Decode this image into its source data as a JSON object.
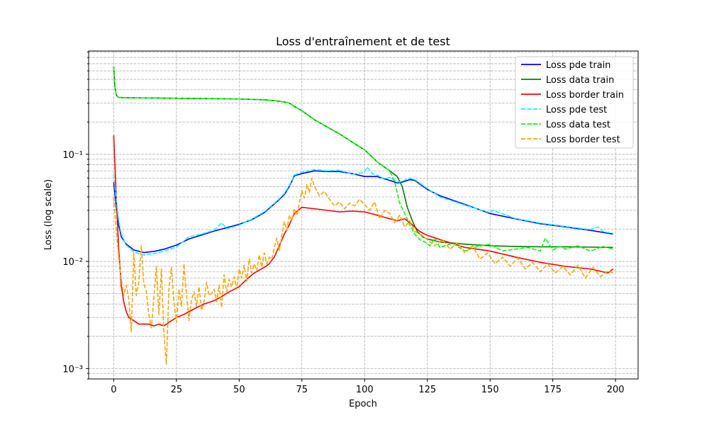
{
  "chart_data": {
    "type": "line",
    "title": "Loss d'entraînement et de test",
    "xlabel": "Epoch",
    "ylabel": "Loss (log scale)",
    "yscale": "log",
    "xlim": [
      -10,
      209
    ],
    "ylim": [
      0.0008,
      0.92
    ],
    "grid": "on (both major and minor, dashed)",
    "legend_position": "top-right",
    "x_ticks": [
      0,
      25,
      50,
      75,
      100,
      125,
      150,
      175,
      200
    ],
    "x_tick_labels": [
      "0",
      "25",
      "50",
      "75",
      "100",
      "125",
      "150",
      "175",
      "200"
    ],
    "y_tick_values": [
      0.001,
      0.01,
      0.1
    ],
    "y_tick_labels": [
      "10⁻³",
      "10⁻²",
      "10⁻¹"
    ],
    "series": [
      {
        "name": "Loss pde train",
        "color": "#0000ff",
        "dash": "solid",
        "x": [
          0,
          1,
          2,
          3,
          5,
          8,
          12,
          16,
          20,
          25,
          30,
          40,
          50,
          55,
          60,
          65,
          68,
          70,
          72,
          75,
          80,
          85,
          90,
          95,
          100,
          105,
          110,
          113,
          115,
          118,
          120,
          125,
          130,
          140,
          150,
          160,
          170,
          180,
          190,
          199
        ],
        "y": [
          0.055,
          0.032,
          0.022,
          0.017,
          0.0145,
          0.0128,
          0.0121,
          0.0124,
          0.013,
          0.0142,
          0.0162,
          0.0192,
          0.0222,
          0.0245,
          0.0285,
          0.036,
          0.042,
          0.05,
          0.063,
          0.066,
          0.07,
          0.069,
          0.069,
          0.066,
          0.062,
          0.062,
          0.057,
          0.054,
          0.055,
          0.058,
          0.057,
          0.047,
          0.041,
          0.034,
          0.028,
          0.025,
          0.0225,
          0.021,
          0.0195,
          0.018
        ]
      },
      {
        "name": "Loss data train",
        "color": "#008000",
        "dash": "solid",
        "x": [
          0,
          0.5,
          1,
          1.5,
          2,
          3,
          5,
          10,
          20,
          30,
          40,
          50,
          55,
          60,
          65,
          68,
          70,
          72,
          75,
          80,
          85,
          90,
          95,
          100,
          105,
          110,
          113,
          115,
          117,
          119,
          121,
          123,
          125,
          130,
          140,
          150,
          160,
          170,
          180,
          190,
          199
        ],
        "y": [
          0.66,
          0.42,
          0.36,
          0.345,
          0.34,
          0.338,
          0.337,
          0.336,
          0.334,
          0.332,
          0.33,
          0.328,
          0.325,
          0.322,
          0.315,
          0.308,
          0.3,
          0.28,
          0.255,
          0.21,
          0.18,
          0.155,
          0.13,
          0.11,
          0.085,
          0.07,
          0.062,
          0.05,
          0.032,
          0.024,
          0.019,
          0.017,
          0.0162,
          0.0152,
          0.0145,
          0.014,
          0.0138,
          0.0137,
          0.0137,
          0.0136,
          0.0135
        ]
      },
      {
        "name": "Loss border train",
        "color": "#ff0000",
        "dash": "solid",
        "x": [
          0,
          1,
          2,
          3,
          4,
          5,
          6,
          7,
          8,
          10,
          12,
          14,
          16,
          18,
          20,
          22,
          25,
          28,
          30,
          33,
          36,
          40,
          43,
          46,
          50,
          53,
          56,
          60,
          62,
          64,
          66,
          68,
          70,
          72,
          75,
          80,
          85,
          90,
          95,
          100,
          105,
          110,
          113,
          116,
          119,
          122,
          125,
          130,
          140,
          150,
          160,
          170,
          180,
          190,
          197,
          199
        ],
        "y": [
          0.15,
          0.04,
          0.013,
          0.006,
          0.0042,
          0.0034,
          0.003,
          0.0029,
          0.0028,
          0.0026,
          0.0026,
          0.0026,
          0.0025,
          0.0026,
          0.0025,
          0.0027,
          0.003,
          0.0032,
          0.0034,
          0.0037,
          0.004,
          0.0043,
          0.0047,
          0.0052,
          0.0058,
          0.0068,
          0.0078,
          0.0088,
          0.0095,
          0.011,
          0.014,
          0.018,
          0.022,
          0.028,
          0.032,
          0.031,
          0.03,
          0.029,
          0.0295,
          0.029,
          0.027,
          0.025,
          0.024,
          0.025,
          0.022,
          0.019,
          0.0175,
          0.016,
          0.0135,
          0.0125,
          0.011,
          0.0098,
          0.009,
          0.0085,
          0.0078,
          0.0085
        ]
      },
      {
        "name": "Loss pde test",
        "color": "#00ffff",
        "dash": "dashed",
        "x": [
          0,
          1,
          2,
          3,
          5,
          8,
          12,
          16,
          20,
          25,
          30,
          35,
          40,
          43,
          45,
          50,
          55,
          60,
          65,
          68,
          70,
          72,
          75,
          80,
          85,
          90,
          95,
          100,
          101,
          103,
          105,
          108,
          110,
          113,
          115,
          118,
          120,
          125,
          130,
          140,
          150,
          151,
          160,
          170,
          180,
          190,
          193,
          195,
          199
        ],
        "y": [
          0.065,
          0.038,
          0.024,
          0.018,
          0.0142,
          0.0122,
          0.0115,
          0.0118,
          0.0125,
          0.0136,
          0.017,
          0.018,
          0.0195,
          0.023,
          0.0202,
          0.0218,
          0.0248,
          0.029,
          0.0365,
          0.043,
          0.051,
          0.064,
          0.068,
          0.072,
          0.07,
          0.071,
          0.065,
          0.068,
          0.076,
          0.066,
          0.064,
          0.058,
          0.061,
          0.055,
          0.056,
          0.06,
          0.058,
          0.048,
          0.04,
          0.0335,
          0.0285,
          0.03,
          0.0252,
          0.0228,
          0.0212,
          0.0198,
          0.021,
          0.019,
          0.0183
        ]
      },
      {
        "name": "Loss data test",
        "color": "#00ff00",
        "dash": "dashed",
        "x": [
          0,
          0.5,
          1,
          1.5,
          2,
          3,
          5,
          10,
          20,
          30,
          40,
          50,
          55,
          60,
          65,
          68,
          70,
          72,
          75,
          80,
          85,
          90,
          95,
          100,
          105,
          110,
          112,
          114,
          116,
          118,
          120,
          122,
          124,
          126,
          128,
          130,
          135,
          140,
          145,
          150,
          155,
          160,
          165,
          170,
          172,
          175,
          178,
          180,
          185,
          190,
          195,
          199
        ],
        "y": [
          0.66,
          0.42,
          0.36,
          0.345,
          0.34,
          0.338,
          0.337,
          0.336,
          0.334,
          0.332,
          0.33,
          0.328,
          0.325,
          0.322,
          0.315,
          0.308,
          0.3,
          0.28,
          0.255,
          0.21,
          0.18,
          0.155,
          0.13,
          0.11,
          0.085,
          0.07,
          0.055,
          0.035,
          0.028,
          0.022,
          0.018,
          0.016,
          0.0152,
          0.014,
          0.0165,
          0.0135,
          0.0148,
          0.0125,
          0.0138,
          0.0145,
          0.0125,
          0.013,
          0.0135,
          0.0125,
          0.0165,
          0.0128,
          0.0138,
          0.013,
          0.014,
          0.0125,
          0.0138,
          0.013
        ]
      },
      {
        "name": "Loss border test",
        "color": "#ffa500",
        "dash": "dashed",
        "x": [
          0,
          1,
          2,
          3,
          4,
          5,
          6,
          7,
          8,
          9,
          10,
          11,
          12,
          13,
          14,
          15,
          16,
          17,
          18,
          19,
          20,
          21,
          22,
          23,
          24,
          25,
          26,
          27,
          28,
          29,
          30,
          31,
          32,
          33,
          34,
          35,
          36,
          37,
          38,
          39,
          40,
          41,
          42,
          43,
          44,
          45,
          46,
          47,
          48,
          49,
          50,
          51,
          52,
          53,
          54,
          55,
          56,
          57,
          58,
          59,
          60,
          61,
          62,
          63,
          64,
          65,
          66,
          67,
          68,
          69,
          70,
          71,
          72,
          73,
          74,
          75,
          76,
          77,
          78,
          79,
          80,
          82,
          84,
          86,
          88,
          90,
          92,
          94,
          96,
          98,
          100,
          102,
          104,
          106,
          108,
          110,
          112,
          114,
          116,
          118,
          120,
          122,
          125,
          128,
          131,
          134,
          137,
          140,
          143,
          146,
          149,
          152,
          155,
          158,
          161,
          164,
          167,
          170,
          173,
          176,
          179,
          182,
          185,
          188,
          191,
          194,
          197,
          199
        ],
        "y": [
          0.04,
          0.02,
          0.011,
          0.0068,
          0.0048,
          0.006,
          0.0045,
          0.0022,
          0.012,
          0.0048,
          0.0065,
          0.014,
          0.0062,
          0.0052,
          0.0032,
          0.0024,
          0.0045,
          0.009,
          0.0032,
          0.0085,
          0.0021,
          0.0011,
          0.0055,
          0.0088,
          0.0042,
          0.0027,
          0.0055,
          0.0038,
          0.0095,
          0.005,
          0.0028,
          0.0044,
          0.0052,
          0.0038,
          0.0058,
          0.0035,
          0.0042,
          0.0064,
          0.0048,
          0.005,
          0.0055,
          0.0042,
          0.006,
          0.0037,
          0.0075,
          0.0052,
          0.0068,
          0.0058,
          0.0072,
          0.0055,
          0.0085,
          0.007,
          0.0092,
          0.0065,
          0.0105,
          0.0078,
          0.0095,
          0.0082,
          0.0115,
          0.0088,
          0.012,
          0.0095,
          0.011,
          0.0105,
          0.0135,
          0.0165,
          0.0125,
          0.0175,
          0.0235,
          0.0195,
          0.027,
          0.024,
          0.031,
          0.027,
          0.035,
          0.046,
          0.039,
          0.052,
          0.044,
          0.06,
          0.05,
          0.041,
          0.045,
          0.038,
          0.033,
          0.036,
          0.031,
          0.035,
          0.033,
          0.038,
          0.034,
          0.03,
          0.036,
          0.025,
          0.03,
          0.028,
          0.023,
          0.027,
          0.021,
          0.024,
          0.019,
          0.018,
          0.016,
          0.014,
          0.016,
          0.013,
          0.015,
          0.012,
          0.014,
          0.0105,
          0.012,
          0.0095,
          0.011,
          0.009,
          0.0108,
          0.0085,
          0.0098,
          0.008,
          0.0095,
          0.0078,
          0.009,
          0.0075,
          0.0092,
          0.007,
          0.0088,
          0.0072,
          0.0082,
          0.0078
        ]
      }
    ]
  }
}
